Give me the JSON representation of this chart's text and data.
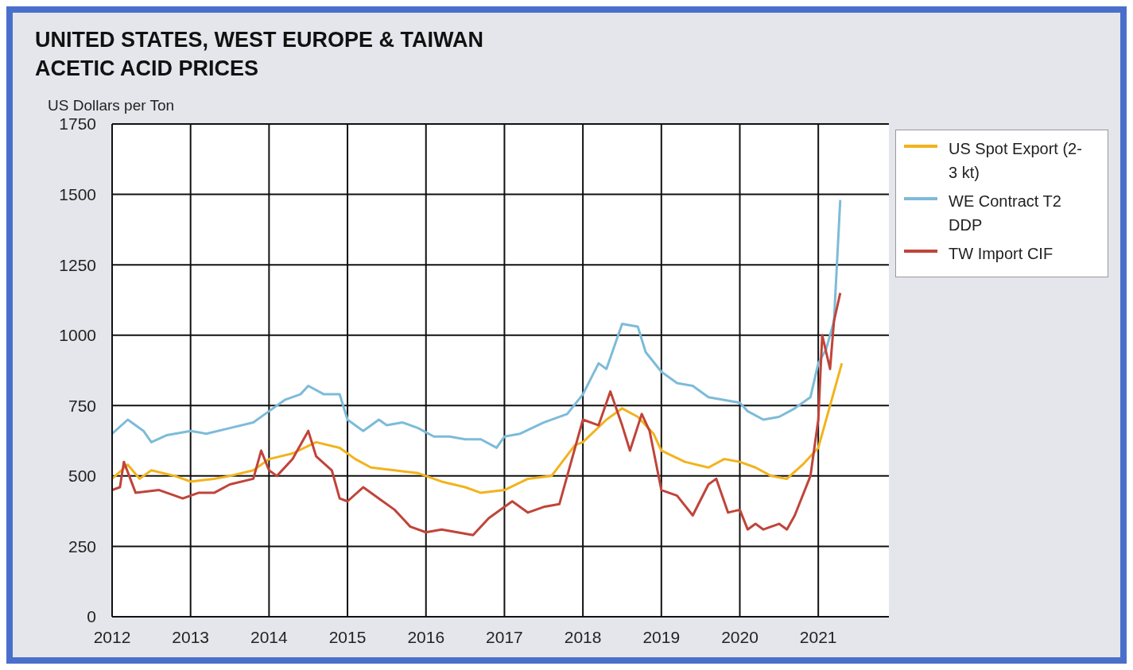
{
  "chart_data": {
    "type": "line",
    "title": "UNITED STATES, WEST EUROPE & TAIWAN\nACETIC ACID PRICES",
    "ylabel": "US Dollars per Ton",
    "xlim": [
      2012,
      2021.9
    ],
    "xticks": [
      2012,
      2013,
      2014,
      2015,
      2016,
      2017,
      2018,
      2019,
      2020,
      2021
    ],
    "ylim": [
      0,
      1750
    ],
    "yticks": [
      0,
      250,
      500,
      750,
      1000,
      1250,
      1500,
      1750
    ],
    "grid": true,
    "legend": "top right",
    "marker": "none",
    "line_style": "solid",
    "series": [
      {
        "name": "US Spot Export (2-3 kt)",
        "color": "#f2b31c",
        "x": [
          2012,
          2012.2,
          2012.35,
          2012.5,
          2012.8,
          2013,
          2013.3,
          2013.5,
          2013.8,
          2014,
          2014.3,
          2014.6,
          2014.9,
          2015.1,
          2015.3,
          2015.6,
          2015.9,
          2016.2,
          2016.5,
          2016.7,
          2017,
          2017.3,
          2017.6,
          2017.9,
          2018,
          2018.3,
          2018.5,
          2018.7,
          2018.9,
          2019,
          2019.3,
          2019.6,
          2019.8,
          2020,
          2020.2,
          2020.4,
          2020.6,
          2020.8,
          2021,
          2021.15,
          2021.3
        ],
        "values": [
          490,
          540,
          490,
          520,
          500,
          480,
          490,
          500,
          520,
          560,
          580,
          620,
          600,
          560,
          530,
          520,
          510,
          480,
          460,
          440,
          450,
          490,
          500,
          610,
          620,
          700,
          740,
          710,
          650,
          590,
          550,
          530,
          560,
          550,
          530,
          500,
          490,
          540,
          600,
          750,
          900
        ]
      },
      {
        "name": "WE Contract T2 DDP",
        "color": "#7dbbd9",
        "x": [
          2012,
          2012.2,
          2012.4,
          2012.5,
          2012.7,
          2013,
          2013.2,
          2013.5,
          2013.8,
          2014,
          2014.2,
          2014.4,
          2014.5,
          2014.7,
          2014.9,
          2015,
          2015.2,
          2015.4,
          2015.5,
          2015.7,
          2015.9,
          2016.1,
          2016.3,
          2016.5,
          2016.7,
          2016.9,
          2017,
          2017.2,
          2017.5,
          2017.8,
          2018,
          2018.2,
          2018.3,
          2018.5,
          2018.7,
          2018.8,
          2019,
          2019.2,
          2019.4,
          2019.6,
          2019.8,
          2020,
          2020.1,
          2020.3,
          2020.5,
          2020.7,
          2020.9,
          2021,
          2021.1,
          2021.2,
          2021.28
        ],
        "values": [
          650,
          700,
          660,
          620,
          645,
          660,
          650,
          670,
          690,
          730,
          770,
          790,
          820,
          790,
          790,
          700,
          660,
          700,
          680,
          690,
          670,
          640,
          640,
          630,
          630,
          600,
          640,
          650,
          690,
          720,
          790,
          900,
          880,
          1040,
          1030,
          940,
          870,
          830,
          820,
          780,
          770,
          760,
          730,
          700,
          710,
          740,
          780,
          900,
          950,
          1050,
          1480
        ]
      },
      {
        "name": "TW Import CIF",
        "color": "#c0443a",
        "x": [
          2012,
          2012.1,
          2012.15,
          2012.3,
          2012.6,
          2012.9,
          2013.1,
          2013.3,
          2013.5,
          2013.8,
          2013.9,
          2014,
          2014.1,
          2014.3,
          2014.5,
          2014.6,
          2014.8,
          2014.9,
          2015,
          2015.2,
          2015.4,
          2015.6,
          2015.8,
          2016,
          2016.2,
          2016.4,
          2016.6,
          2016.8,
          2017,
          2017.1,
          2017.3,
          2017.5,
          2017.7,
          2017.8,
          2018,
          2018.2,
          2018.35,
          2018.5,
          2018.6,
          2018.75,
          2018.85,
          2019,
          2019.2,
          2019.4,
          2019.6,
          2019.7,
          2019.85,
          2020,
          2020.1,
          2020.2,
          2020.3,
          2020.5,
          2020.6,
          2020.7,
          2020.9,
          2021,
          2021.05,
          2021.15,
          2021.2,
          2021.28
        ],
        "values": [
          450,
          460,
          550,
          440,
          450,
          420,
          440,
          440,
          470,
          490,
          590,
          520,
          500,
          560,
          660,
          570,
          520,
          420,
          410,
          460,
          420,
          380,
          320,
          300,
          310,
          300,
          290,
          350,
          390,
          410,
          370,
          390,
          400,
          500,
          700,
          680,
          800,
          680,
          590,
          720,
          660,
          450,
          430,
          360,
          470,
          490,
          370,
          380,
          310,
          330,
          310,
          330,
          310,
          360,
          500,
          700,
          1000,
          880,
          1050,
          1150
        ]
      }
    ]
  }
}
